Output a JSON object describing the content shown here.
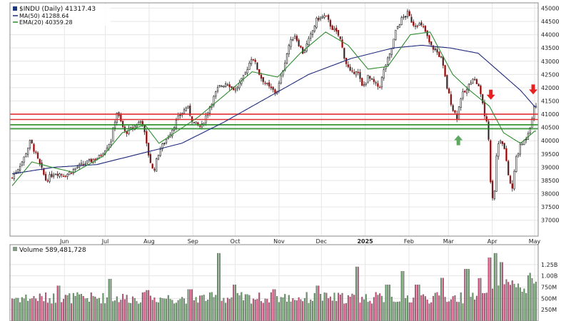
{
  "chart_data": [
    {
      "type": "candlestick",
      "title": "$INDU (Daily) 41317.43",
      "legend": [
        {
          "label": "MA(50) 41288.64",
          "color": "#1f2a7a"
        },
        {
          "label": "EMA(20) 40359.28",
          "color": "#2e8b2e"
        }
      ],
      "ylim": [
        36400,
        45200
      ],
      "y_ticks": [
        37000,
        37500,
        38000,
        38500,
        39000,
        39500,
        40000,
        40500,
        41000,
        41500,
        42000,
        42500,
        43000,
        43500,
        44000,
        44500,
        45000
      ],
      "x_ticks": [
        {
          "label": "Jun",
          "day": 37
        },
        {
          "label": "Jul",
          "day": 66
        },
        {
          "label": "Aug",
          "day": 97
        },
        {
          "label": "Sep",
          "day": 128
        },
        {
          "label": "Oct",
          "day": 158
        },
        {
          "label": "Nov",
          "day": 189
        },
        {
          "label": "Dec",
          "day": 219
        },
        {
          "label": "2025",
          "day": 250,
          "bold": true
        },
        {
          "label": "Feb",
          "day": 281
        },
        {
          "label": "Mar",
          "day": 309
        },
        {
          "label": "Apr",
          "day": 340
        },
        {
          "label": "May",
          "day": 370
        }
      ],
      "date_range": {
        "start_day": 0,
        "end_day": 371
      },
      "close_anchors": [
        [
          0,
          38600
        ],
        [
          8,
          39300
        ],
        [
          13,
          40000
        ],
        [
          18,
          39300
        ],
        [
          24,
          38500
        ],
        [
          30,
          38800
        ],
        [
          38,
          38700
        ],
        [
          46,
          39000
        ],
        [
          54,
          39200
        ],
        [
          62,
          39400
        ],
        [
          70,
          40000
        ],
        [
          74,
          41100
        ],
        [
          80,
          40300
        ],
        [
          86,
          40500
        ],
        [
          92,
          40800
        ],
        [
          96,
          39600
        ],
        [
          100,
          38800
        ],
        [
          104,
          39600
        ],
        [
          112,
          40300
        ],
        [
          118,
          40900
        ],
        [
          124,
          41300
        ],
        [
          128,
          40700
        ],
        [
          134,
          40500
        ],
        [
          140,
          41300
        ],
        [
          146,
          42000
        ],
        [
          152,
          42200
        ],
        [
          158,
          41900
        ],
        [
          164,
          42400
        ],
        [
          170,
          43200
        ],
        [
          176,
          42400
        ],
        [
          182,
          42000
        ],
        [
          187,
          41800
        ],
        [
          190,
          42300
        ],
        [
          196,
          43600
        ],
        [
          200,
          44000
        ],
        [
          206,
          43300
        ],
        [
          211,
          43900
        ],
        [
          216,
          44600
        ],
        [
          222,
          44700
        ],
        [
          226,
          44300
        ],
        [
          232,
          43900
        ],
        [
          236,
          43000
        ],
        [
          240,
          42500
        ],
        [
          244,
          42700
        ],
        [
          248,
          42000
        ],
        [
          252,
          42400
        ],
        [
          256,
          42200
        ],
        [
          260,
          42000
        ],
        [
          264,
          42800
        ],
        [
          268,
          43300
        ],
        [
          272,
          44200
        ],
        [
          276,
          44600
        ],
        [
          280,
          44800
        ],
        [
          284,
          44400
        ],
        [
          288,
          44400
        ],
        [
          292,
          44200
        ],
        [
          296,
          43600
        ],
        [
          300,
          43400
        ],
        [
          304,
          43100
        ],
        [
          308,
          42000
        ],
        [
          312,
          41200
        ],
        [
          315,
          40900
        ],
        [
          318,
          41700
        ],
        [
          322,
          41900
        ],
        [
          326,
          42400
        ],
        [
          330,
          42100
        ],
        [
          333,
          41500
        ],
        [
          335,
          40800
        ],
        [
          337,
          40500
        ],
        [
          339,
          38300
        ],
        [
          341,
          37600
        ],
        [
          343,
          39400
        ],
        [
          345,
          40100
        ],
        [
          348,
          39900
        ],
        [
          351,
          38800
        ],
        [
          354,
          38100
        ],
        [
          357,
          39400
        ],
        [
          360,
          39800
        ],
        [
          364,
          40100
        ],
        [
          367,
          40600
        ],
        [
          370,
          41317
        ]
      ],
      "ma50_anchors": [
        [
          0,
          38750
        ],
        [
          30,
          39000
        ],
        [
          60,
          39100
        ],
        [
          90,
          39500
        ],
        [
          120,
          39900
        ],
        [
          150,
          40700
        ],
        [
          180,
          41600
        ],
        [
          210,
          42500
        ],
        [
          240,
          43100
        ],
        [
          270,
          43500
        ],
        [
          290,
          43600
        ],
        [
          310,
          43500
        ],
        [
          330,
          43300
        ],
        [
          345,
          42600
        ],
        [
          360,
          41900
        ],
        [
          370,
          41289
        ]
      ],
      "ema20_anchors": [
        [
          0,
          38300
        ],
        [
          14,
          39200
        ],
        [
          28,
          39000
        ],
        [
          44,
          38800
        ],
        [
          64,
          39400
        ],
        [
          78,
          40300
        ],
        [
          94,
          40600
        ],
        [
          104,
          39900
        ],
        [
          118,
          40400
        ],
        [
          132,
          40900
        ],
        [
          150,
          41700
        ],
        [
          170,
          42600
        ],
        [
          188,
          42400
        ],
        [
          204,
          43300
        ],
        [
          222,
          44100
        ],
        [
          238,
          43600
        ],
        [
          252,
          42700
        ],
        [
          266,
          42800
        ],
        [
          282,
          44000
        ],
        [
          296,
          44100
        ],
        [
          312,
          42500
        ],
        [
          324,
          41900
        ],
        [
          338,
          41300
        ],
        [
          348,
          40300
        ],
        [
          360,
          39900
        ],
        [
          370,
          40359
        ]
      ],
      "horizontal_lines": [
        {
          "name": "resistance-upper",
          "value": 41000,
          "color": "#e03030"
        },
        {
          "name": "resistance-lower",
          "value": 40800,
          "color": "#e03030"
        },
        {
          "name": "support-upper",
          "value": 40600,
          "color": "#228b22"
        },
        {
          "name": "support-lower",
          "value": 40450,
          "color": "#228b22"
        }
      ],
      "arrows": [
        {
          "name": "green-up-arrow",
          "direction": "up",
          "day": 316,
          "value": 40150,
          "color": "#5fa85f"
        },
        {
          "name": "red-down-arrow-1",
          "direction": "down",
          "day": 339,
          "value": 41600,
          "color": "#e82020"
        },
        {
          "name": "red-down-arrow-2",
          "direction": "down",
          "day": 369,
          "value": 41800,
          "color": "#e82020"
        }
      ],
      "volume": {
        "title": "Volume 589,481,728",
        "ylim": [
          0,
          1500000000
        ],
        "y_ticks": [
          {
            "value": 250000000,
            "label": "250M"
          },
          {
            "value": 500000000,
            "label": "500M"
          },
          {
            "value": 750000000,
            "label": "750M"
          },
          {
            "value": 1000000000,
            "label": "1.00B"
          },
          {
            "value": 1250000000,
            "label": "1.25B"
          }
        ],
        "spike_days": [
          [
            33,
            780
          ],
          [
            69,
            930
          ],
          [
            96,
            680
          ],
          [
            126,
            700
          ],
          [
            146,
            1500
          ],
          [
            158,
            800
          ],
          [
            186,
            700
          ],
          [
            216,
            780
          ],
          [
            244,
            1200
          ],
          [
            266,
            800
          ],
          [
            276,
            1100
          ],
          [
            287,
            800
          ],
          [
            304,
            950
          ],
          [
            322,
            1150
          ],
          [
            338,
            1400
          ],
          [
            342,
            1500
          ],
          [
            346,
            1300
          ]
        ]
      }
    }
  ]
}
